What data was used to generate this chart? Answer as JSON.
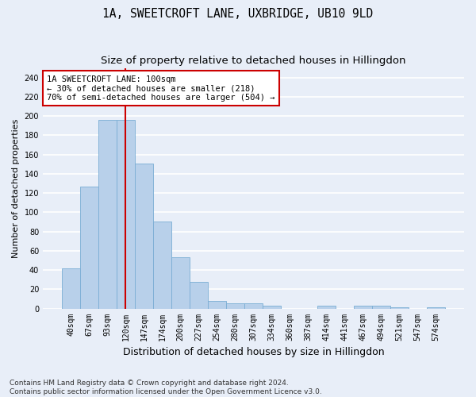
{
  "title_line1": "1A, SWEETCROFT LANE, UXBRIDGE, UB10 9LD",
  "title_line2": "Size of property relative to detached houses in Hillingdon",
  "xlabel": "Distribution of detached houses by size in Hillingdon",
  "ylabel": "Number of detached properties",
  "categories": [
    "40sqm",
    "67sqm",
    "93sqm",
    "120sqm",
    "147sqm",
    "174sqm",
    "200sqm",
    "227sqm",
    "254sqm",
    "280sqm",
    "307sqm",
    "334sqm",
    "360sqm",
    "387sqm",
    "414sqm",
    "441sqm",
    "467sqm",
    "494sqm",
    "521sqm",
    "547sqm",
    "574sqm"
  ],
  "values": [
    42,
    127,
    196,
    196,
    151,
    90,
    53,
    28,
    8,
    5,
    5,
    3,
    0,
    0,
    3,
    0,
    3,
    3,
    1,
    0,
    1
  ],
  "bar_color": "#b8d0ea",
  "bar_edge_color": "#7aadd4",
  "ylim": [
    0,
    250
  ],
  "yticks": [
    0,
    20,
    40,
    60,
    80,
    100,
    120,
    140,
    160,
    180,
    200,
    220,
    240
  ],
  "annotation_text": "1A SWEETCROFT LANE: 100sqm\n← 30% of detached houses are smaller (218)\n70% of semi-detached houses are larger (504) →",
  "annotation_box_color": "#ffffff",
  "annotation_box_edge": "#cc0000",
  "vline_x": 2.98,
  "vline_color": "#cc0000",
  "footnote": "Contains HM Land Registry data © Crown copyright and database right 2024.\nContains public sector information licensed under the Open Government Licence v3.0.",
  "bg_color": "#e8eef8",
  "grid_color": "#ffffff",
  "title_fontsize": 10.5,
  "subtitle_fontsize": 9.5,
  "ylabel_fontsize": 8,
  "xlabel_fontsize": 9,
  "tick_fontsize": 7,
  "footnote_fontsize": 6.5
}
